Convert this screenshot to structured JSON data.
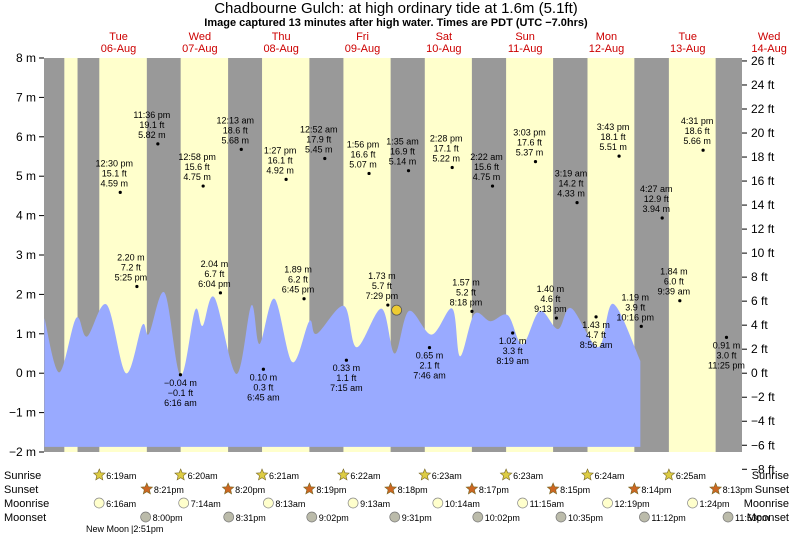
{
  "header": {
    "title": "Chadbourne Gulch: at high  ordinary tide at 1.6m (5.1ft)",
    "subtitle": "Image captured 13 minutes after high water. Times are PDT (UTC −7.0hrs)"
  },
  "days": [
    {
      "name": "Tue",
      "date": "06-Aug"
    },
    {
      "name": "Wed",
      "date": "07-Aug"
    },
    {
      "name": "Thu",
      "date": "08-Aug"
    },
    {
      "name": "Fri",
      "date": "09-Aug"
    },
    {
      "name": "Sat",
      "date": "10-Aug"
    },
    {
      "name": "Sun",
      "date": "11-Aug"
    },
    {
      "name": "Mon",
      "date": "12-Aug"
    },
    {
      "name": "Tue",
      "date": "13-Aug"
    },
    {
      "name": "Wed",
      "date": "14-Aug"
    }
  ],
  "chart_data": {
    "type": "area",
    "time_unit": "hours since 00:00 on 06-Aug (PDT)",
    "y_unit": "m",
    "ylim": [
      -2,
      8
    ],
    "y_ticks_m": [
      "8 m",
      "7 m",
      "6 m",
      "5 m",
      "4 m",
      "3 m",
      "2 m",
      "1 m",
      "0 m",
      "−1 m",
      "−2 m"
    ],
    "y_ticks_ft": [
      "26 ft",
      "24 ft",
      "22 ft",
      "20 ft",
      "18 ft",
      "16 ft",
      "14 ft",
      "12 ft",
      "10 ft",
      "8 ft",
      "6 ft",
      "4 ft",
      "2 ft",
      "0 ft",
      "−2 ft",
      "−4 ft",
      "−6 ft",
      "−8 ft"
    ],
    "curve_points": [
      [
        -9.87,
        1.4
      ],
      [
        -5.5,
        0.02
      ],
      [
        -0.5,
        1.4
      ],
      [
        2.7,
        0.93
      ],
      [
        8.5,
        1.74
      ],
      [
        14.2,
        0.0
      ],
      [
        19.0,
        1.22
      ],
      [
        21.0,
        1.0
      ],
      [
        25.6,
        2.04
      ],
      [
        30.3,
        -0.06
      ],
      [
        34.6,
        1.6
      ],
      [
        36.8,
        1.2
      ],
      [
        40.3,
        1.92
      ],
      [
        46.8,
        -0.02
      ],
      [
        51.2,
        1.72
      ],
      [
        53.6,
        0.74
      ],
      [
        58.0,
        1.89
      ],
      [
        63.3,
        0.28
      ],
      [
        68.3,
        1.32
      ],
      [
        70.5,
        1.0
      ],
      [
        78.5,
        1.71
      ],
      [
        82.3,
        0.66
      ],
      [
        89.6,
        1.64
      ],
      [
        93.5,
        0.5
      ],
      [
        97.7,
        1.58
      ],
      [
        104.4,
        0.98
      ],
      [
        110.5,
        1.64
      ],
      [
        112.8,
        0.43
      ],
      [
        117.0,
        1.5
      ],
      [
        121.8,
        1.32
      ],
      [
        126.9,
        1.47
      ],
      [
        131.2,
        0.73
      ],
      [
        136.3,
        1.58
      ],
      [
        141.7,
        1.12
      ],
      [
        145.6,
        1.65
      ],
      [
        153.6,
        0.66
      ],
      [
        158.0,
        1.76
      ],
      [
        166.0,
        0.31
      ]
    ],
    "labeled_extremes": [
      {
        "h_label": "2.20 m",
        "ft_label": "7.2 ft",
        "time": "5:25 pm",
        "t": 17.42,
        "v": 2.2,
        "kind": "high"
      },
      {
        "h_label": "−0.04 m",
        "ft_label": "−0.1 ft",
        "time": "6:16 am",
        "t": 30.27,
        "v": -0.04,
        "kind": "low"
      },
      {
        "h_label": "2.04 m",
        "ft_label": "6.7 ft",
        "time": "6:04 pm",
        "t": 42.07,
        "v": 2.04,
        "kind": "high"
      },
      {
        "h_label": "0.10 m",
        "ft_label": "0.3 ft",
        "time": "6:45 am",
        "t": 54.75,
        "v": 0.1,
        "kind": "low"
      },
      {
        "h_label": "1.89 m",
        "ft_label": "6.2 ft",
        "time": "6:45 pm",
        "t": 66.75,
        "v": 1.89,
        "kind": "high"
      },
      {
        "h_label": "0.33 m",
        "ft_label": "1.1 ft",
        "time": "7:15 am",
        "t": 79.25,
        "v": 0.33,
        "kind": "low"
      },
      {
        "h_label": "1.73 m",
        "ft_label": "5.7 ft",
        "time": "7:29 pm",
        "t": 91.48,
        "v": 1.73,
        "kind": "high"
      },
      {
        "h_label": "0.65 m",
        "ft_label": "2.1 ft",
        "time": "7:46 am",
        "t": 103.77,
        "v": 0.65,
        "kind": "low"
      },
      {
        "h_label": "1.57 m",
        "ft_label": "5.2 ft",
        "time": "8:18 pm",
        "t": 116.3,
        "v": 1.57,
        "kind": "high"
      },
      {
        "h_label": "1.02 m",
        "ft_label": "3.3 ft",
        "time": "8:19 am",
        "t": 128.32,
        "v": 1.02,
        "kind": "low"
      },
      {
        "h_label": "1.40 m",
        "ft_label": "4.6 ft",
        "time": "9:13 pm",
        "t": 141.22,
        "v": 1.4,
        "kind": "high"
      },
      {
        "h_label": "1.43 m",
        "ft_label": "4.7 ft",
        "time": "8:56 am",
        "t": 152.93,
        "v": 1.43,
        "kind": "low"
      },
      {
        "h_label": "1.19 m",
        "ft_label": "3.9 ft",
        "time": "10:16 pm",
        "t": 166.27,
        "v": 1.19,
        "kind": "high"
      },
      {
        "h_label": "1.84 m",
        "ft_label": "6.0 ft",
        "time": "9:39 am",
        "t": 177.65,
        "v": 1.84,
        "kind": "high"
      },
      {
        "h_label": "0.91 m",
        "ft_label": "3.0 ft",
        "time": "11:25 pm",
        "t": 191.42,
        "v": 0.91,
        "kind": "low"
      }
    ],
    "upper_labels": [
      {
        "time": "12:30 pm",
        "ft_label": "15.1 ft",
        "h_label": "4.59 m",
        "t": 12.5,
        "v": 4.59
      },
      {
        "time": "11:36 pm",
        "ft_label": "19.1 ft",
        "h_label": "5.82 m",
        "t": 23.6,
        "v": 5.82
      },
      {
        "time": "12:58 pm",
        "ft_label": "15.6 ft",
        "h_label": "4.75 m",
        "t": 36.97,
        "v": 4.75
      },
      {
        "time": "12:13 am",
        "ft_label": "18.6 ft",
        "h_label": "5.68 m",
        "t": 48.22,
        "v": 5.68
      },
      {
        "time": "1:27 pm",
        "ft_label": "16.1 ft",
        "h_label": "4.92 m",
        "t": 61.45,
        "v": 4.92
      },
      {
        "time": "12:52 am",
        "ft_label": "17.9 ft",
        "h_label": "5.45 m",
        "t": 72.87,
        "v": 5.45
      },
      {
        "time": "1:56 pm",
        "ft_label": "16.6 ft",
        "h_label": "5.07 m",
        "t": 85.93,
        "v": 5.07
      },
      {
        "time": "1:35 am",
        "ft_label": "16.9 ft",
        "h_label": "5.14 m",
        "t": 97.58,
        "v": 5.14
      },
      {
        "time": "2:28 pm",
        "ft_label": "17.1 ft",
        "h_label": "5.22 m",
        "t": 110.47,
        "v": 5.22
      },
      {
        "time": "2:22 am",
        "ft_label": "15.6 ft",
        "h_label": "4.75 m",
        "t": 122.37,
        "v": 4.75
      },
      {
        "time": "3:03 pm",
        "ft_label": "17.6 ft",
        "h_label": "5.37 m",
        "t": 135.05,
        "v": 5.37
      },
      {
        "time": "3:19 am",
        "ft_label": "14.2 ft",
        "h_label": "4.33 m",
        "t": 147.32,
        "v": 4.33
      },
      {
        "time": "3:43 pm",
        "ft_label": "18.1 ft",
        "h_label": "5.51 m",
        "t": 159.72,
        "v": 5.51
      },
      {
        "time": "4:27 am",
        "ft_label": "12.9 ft",
        "h_label": "3.94 m",
        "t": 172.45,
        "v": 3.94
      },
      {
        "time": "4:31 pm",
        "ft_label": "18.6 ft",
        "h_label": "5.66 m",
        "t": 184.52,
        "v": 5.66
      }
    ],
    "current_marker": {
      "t": 91.7,
      "v": 1.6
    },
    "daylight": [
      [
        -4.0,
        -0.1
      ],
      [
        6.32,
        20.35
      ],
      [
        30.33,
        44.33
      ],
      [
        54.35,
        68.32
      ],
      [
        78.37,
        92.3
      ],
      [
        102.38,
        116.28
      ],
      [
        126.38,
        140.25
      ],
      [
        150.4,
        164.23
      ],
      [
        174.42,
        188.22
      ]
    ],
    "x_range_hours": [
      -10.0,
      196.0
    ]
  },
  "rows": {
    "labels": {
      "sunrise": "Sunrise",
      "sunset": "Sunset",
      "moonrise": "Moonrise",
      "moonset": "Moonset"
    },
    "sunrise": [
      {
        "t": 6.32,
        "text": "6:19am"
      },
      {
        "t": 30.33,
        "text": "6:20am"
      },
      {
        "t": 54.35,
        "text": "6:21am"
      },
      {
        "t": 78.37,
        "text": "6:22am"
      },
      {
        "t": 102.38,
        "text": "6:23am"
      },
      {
        "t": 126.38,
        "text": "6:23am"
      },
      {
        "t": 150.4,
        "text": "6:24am"
      },
      {
        "t": 174.42,
        "text": "6:25am"
      }
    ],
    "sunset": [
      {
        "t": 20.35,
        "text": "8:21pm"
      },
      {
        "t": 44.33,
        "text": "8:20pm"
      },
      {
        "t": 68.32,
        "text": "8:19pm"
      },
      {
        "t": 92.3,
        "text": "8:18pm"
      },
      {
        "t": 116.28,
        "text": "8:17pm"
      },
      {
        "t": 140.25,
        "text": "8:15pm"
      },
      {
        "t": 164.23,
        "text": "8:14pm"
      },
      {
        "t": 188.22,
        "text": "8:13pm"
      }
    ],
    "moonrise": [
      {
        "t": 6.27,
        "text": "6:16am"
      },
      {
        "t": 31.23,
        "text": "7:14am"
      },
      {
        "t": 56.22,
        "text": "8:13am"
      },
      {
        "t": 81.22,
        "text": "9:13am"
      },
      {
        "t": 106.23,
        "text": "10:14am"
      },
      {
        "t": 131.25,
        "text": "11:15am"
      },
      {
        "t": 156.32,
        "text": "12:19pm"
      },
      {
        "t": 181.4,
        "text": "1:24pm"
      }
    ],
    "moonset": [
      {
        "t": 20.0,
        "text": "8:00pm"
      },
      {
        "t": 44.52,
        "text": "8:31pm"
      },
      {
        "t": 69.03,
        "text": "9:02pm"
      },
      {
        "t": 93.52,
        "text": "9:31pm"
      },
      {
        "t": 118.03,
        "text": "10:02pm"
      },
      {
        "t": 142.58,
        "text": "10:35pm"
      },
      {
        "t": 167.2,
        "text": "11:12pm"
      },
      {
        "t": 191.88,
        "text": "11:53pm"
      }
    ],
    "new_moon": {
      "label": "New Moon",
      "time": "|2:51pm"
    }
  },
  "colors": {
    "night": "#999999",
    "day": "#ffffcc",
    "water": "#99aaff",
    "current_marker": "#eecc33",
    "day_label": "#cc0000",
    "sun_star": "#ddcc44",
    "sunset_star": "#cc6622",
    "moonrise": "#ffffcc",
    "moonset": "#bbbbaa"
  }
}
